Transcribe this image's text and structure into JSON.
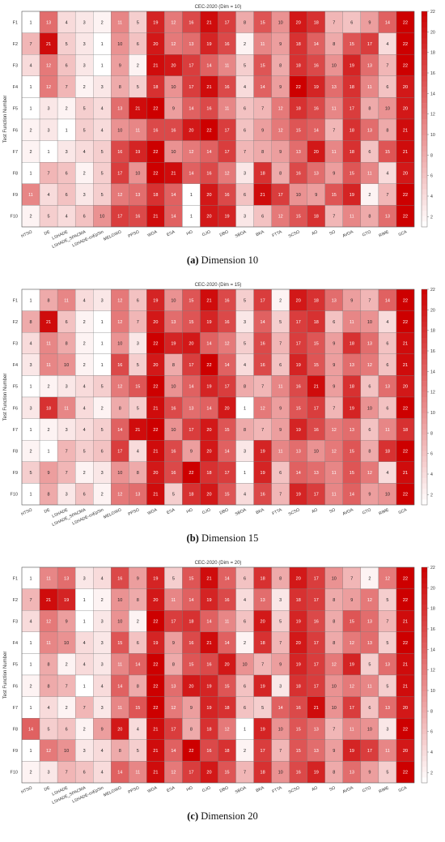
{
  "chart_data": [
    {
      "type": "heatmap",
      "title": "CEC-2020 (Dim = 10)",
      "caption_letter": "(a)",
      "caption_text": " Dimension 10",
      "ylabel": "Test Function Number",
      "x": [
        "HTSO",
        "DE",
        "LSHADE",
        "LSHADE_SPACMA",
        "LSHADE-cnEpSin",
        "MELGWO",
        "PPSO",
        "WOA",
        "ESA",
        "HO",
        "GJO",
        "DBO",
        "SBOA",
        "BKA",
        "FTTA",
        "SCSO",
        "AO",
        "SO",
        "AVOA",
        "GTO",
        "RIME",
        "SCA"
      ],
      "y": [
        "F1",
        "F2",
        "F3",
        "F4",
        "F5",
        "F6",
        "F7",
        "F8",
        "F9",
        "F10"
      ],
      "colorbar_ticks": [
        "2",
        "4",
        "6",
        "8",
        "10",
        "12",
        "14",
        "16",
        "18",
        "20",
        "22"
      ],
      "values": [
        [
          1,
          13,
          4,
          3,
          2,
          11,
          5,
          19,
          12,
          16,
          21,
          17,
          8,
          15,
          10,
          20,
          18,
          7,
          6,
          9,
          14,
          22
        ],
        [
          7,
          21,
          5,
          3,
          1,
          10,
          6,
          20,
          12,
          13,
          19,
          16,
          2,
          11,
          9,
          18,
          14,
          8,
          15,
          17,
          4,
          22
        ],
        [
          4,
          12,
          6,
          3,
          1,
          9,
          2,
          21,
          20,
          17,
          14,
          11,
          5,
          15,
          8,
          18,
          16,
          10,
          19,
          13,
          7,
          22
        ],
        [
          1,
          12,
          7,
          2,
          3,
          8,
          5,
          18,
          10,
          17,
          21,
          16,
          4,
          14,
          9,
          22,
          19,
          13,
          18,
          11,
          6,
          20
        ],
        [
          1,
          3,
          2,
          5,
          4,
          13,
          21,
          22,
          9,
          14,
          16,
          11,
          6,
          7,
          12,
          18,
          16,
          11,
          17,
          8,
          10,
          20
        ],
        [
          2,
          3,
          1,
          5,
          4,
          10,
          11,
          16,
          16,
          20,
          22,
          17,
          6,
          9,
          12,
          15,
          14,
          7,
          18,
          13,
          8,
          21
        ],
        [
          2,
          1,
          3,
          4,
          5,
          16,
          19,
          22,
          10,
          12,
          14,
          17,
          7,
          8,
          9,
          13,
          20,
          11,
          18,
          6,
          15,
          21
        ],
        [
          1,
          7,
          6,
          2,
          5,
          17,
          10,
          22,
          21,
          14,
          16,
          12,
          3,
          18,
          8,
          16,
          13,
          9,
          15,
          11,
          4,
          20
        ],
        [
          11,
          4,
          6,
          3,
          5,
          12,
          13,
          18,
          14,
          1,
          20,
          16,
          6,
          21,
          17,
          10,
          9,
          15,
          19,
          2,
          7,
          22
        ],
        [
          2,
          5,
          4,
          6,
          10,
          17,
          16,
          21,
          14,
          1,
          20,
          19,
          3,
          6,
          12,
          15,
          18,
          7,
          11,
          8,
          13,
          22
        ]
      ]
    },
    {
      "type": "heatmap",
      "title": "CEC-2020 (Dim = 15)",
      "caption_letter": "(b)",
      "caption_text": " Dimension 15",
      "ylabel": "Test Function Number",
      "x": [
        "HTSO",
        "DE",
        "LSHADE",
        "LSHADE_SPACMA",
        "LSHADE-cnEpSin",
        "MELGWO",
        "PPSO",
        "WOA",
        "ESA",
        "HO",
        "GJO",
        "DBO",
        "SBOA",
        "BKA",
        "FTTA",
        "SCSO",
        "AO",
        "SO",
        "AVOA",
        "GTO",
        "RIME",
        "SCA"
      ],
      "y": [
        "F1",
        "F2",
        "F3",
        "F4",
        "F5",
        "F6",
        "F7",
        "F8",
        "F9",
        "F10"
      ],
      "colorbar_ticks": [
        "2",
        "4",
        "6",
        "8",
        "10",
        "12",
        "14",
        "16",
        "18",
        "20",
        "22"
      ],
      "values": [
        [
          1,
          8,
          11,
          4,
          3,
          12,
          6,
          19,
          10,
          15,
          21,
          16,
          5,
          17,
          2,
          20,
          18,
          13,
          9,
          7,
          14,
          22
        ],
        [
          8,
          21,
          6,
          2,
          1,
          12,
          7,
          20,
          13,
          15,
          19,
          16,
          3,
          14,
          5,
          17,
          18,
          6,
          11,
          10,
          4,
          22
        ],
        [
          4,
          11,
          8,
          2,
          1,
          10,
          3,
          22,
          19,
          20,
          14,
          12,
          5,
          16,
          7,
          17,
          15,
          9,
          18,
          13,
          6,
          21
        ],
        [
          3,
          11,
          10,
          2,
          1,
          16,
          5,
          20,
          8,
          17,
          22,
          14,
          4,
          16,
          6,
          19,
          15,
          9,
          13,
          12,
          6,
          21
        ],
        [
          1,
          2,
          3,
          4,
          5,
          12,
          15,
          22,
          10,
          14,
          19,
          17,
          8,
          7,
          11,
          16,
          21,
          9,
          18,
          6,
          13,
          20
        ],
        [
          3,
          18,
          11,
          4,
          2,
          8,
          5,
          21,
          16,
          13,
          14,
          20,
          1,
          12,
          9,
          15,
          17,
          7,
          19,
          10,
          6,
          22
        ],
        [
          1,
          2,
          3,
          4,
          5,
          14,
          21,
          22,
          10,
          17,
          20,
          15,
          8,
          7,
          9,
          19,
          16,
          12,
          13,
          6,
          11,
          18
        ],
        [
          2,
          1,
          7,
          5,
          6,
          17,
          4,
          21,
          16,
          9,
          20,
          14,
          3,
          19,
          11,
          13,
          10,
          12,
          15,
          8,
          18,
          22
        ],
        [
          5,
          9,
          7,
          2,
          3,
          10,
          8,
          20,
          16,
          22,
          18,
          17,
          1,
          19,
          6,
          14,
          13,
          11,
          15,
          12,
          4,
          21
        ],
        [
          1,
          8,
          3,
          6,
          2,
          12,
          13,
          21,
          5,
          18,
          20,
          15,
          4,
          16,
          7,
          19,
          17,
          11,
          14,
          9,
          10,
          22
        ]
      ]
    },
    {
      "type": "heatmap",
      "title": "CEC-2020 (Dim = 20)",
      "caption_letter": "(c)",
      "caption_text": " Dimension 20",
      "ylabel": "Test Function Number",
      "x": [
        "HTSO",
        "DE",
        "LSHADE",
        "LSHADE_SPACMA",
        "LSHADE-cnEpSin",
        "MELGWO",
        "PPSO",
        "WOA",
        "ESA",
        "HO",
        "GJO",
        "DBO",
        "SBOA",
        "BKA",
        "FTTA",
        "SCSO",
        "AO",
        "SO",
        "AVOA",
        "GTO",
        "RIME",
        "SCA"
      ],
      "y": [
        "F1",
        "F2",
        "F3",
        "F4",
        "F5",
        "F6",
        "F7",
        "F8",
        "F9",
        "F10"
      ],
      "colorbar_ticks": [
        "2",
        "4",
        "6",
        "8",
        "10",
        "12",
        "14",
        "16",
        "18",
        "20",
        "22"
      ],
      "values": [
        [
          1,
          11,
          13,
          3,
          4,
          16,
          9,
          19,
          5,
          15,
          21,
          14,
          6,
          18,
          8,
          20,
          17,
          10,
          7,
          2,
          12,
          22
        ],
        [
          7,
          21,
          19,
          1,
          2,
          10,
          8,
          20,
          11,
          14,
          19,
          16,
          4,
          13,
          3,
          18,
          17,
          8,
          9,
          12,
          5,
          22
        ],
        [
          4,
          12,
          9,
          1,
          3,
          10,
          2,
          22,
          17,
          18,
          14,
          11,
          6,
          20,
          5,
          19,
          16,
          8,
          15,
          13,
          7,
          21
        ],
        [
          1,
          11,
          10,
          4,
          3,
          15,
          6,
          19,
          9,
          16,
          21,
          14,
          2,
          18,
          7,
          20,
          17,
          8,
          12,
          13,
          5,
          22
        ],
        [
          1,
          8,
          2,
          4,
          3,
          11,
          14,
          22,
          8,
          15,
          16,
          20,
          10,
          7,
          9,
          19,
          17,
          12,
          19,
          5,
          13,
          21
        ],
        [
          2,
          8,
          7,
          1,
          4,
          14,
          8,
          22,
          13,
          20,
          19,
          15,
          6,
          19,
          3,
          18,
          17,
          10,
          12,
          11,
          5,
          21
        ],
        [
          1,
          4,
          2,
          7,
          3,
          11,
          15,
          22,
          12,
          9,
          19,
          18,
          6,
          5,
          14,
          16,
          21,
          10,
          17,
          6,
          13,
          20
        ],
        [
          14,
          5,
          6,
          2,
          9,
          20,
          4,
          21,
          17,
          8,
          18,
          12,
          1,
          19,
          10,
          15,
          13,
          7,
          11,
          10,
          3,
          22
        ],
        [
          1,
          12,
          10,
          3,
          4,
          8,
          5,
          21,
          14,
          22,
          16,
          18,
          2,
          17,
          7,
          15,
          13,
          9,
          19,
          17,
          11,
          20
        ],
        [
          2,
          3,
          7,
          6,
          4,
          14,
          11,
          21,
          12,
          17,
          20,
          15,
          7,
          18,
          10,
          16,
          19,
          8,
          13,
          9,
          5,
          22
        ]
      ]
    }
  ]
}
